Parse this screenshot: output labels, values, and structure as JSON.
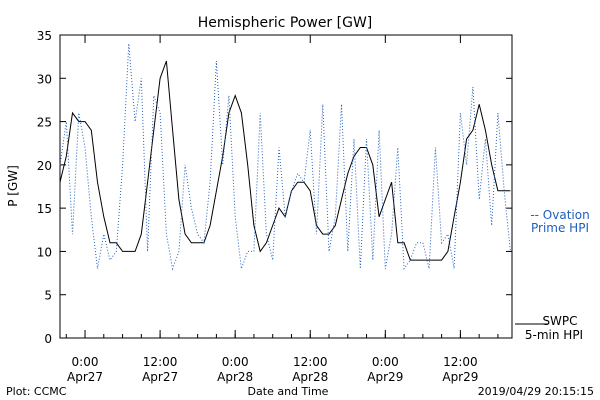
{
  "chart_data": {
    "type": "line",
    "title": "Hemispheric Power [GW]",
    "ylabel": "P [GW]",
    "xlabel": "Date and Time",
    "ylim": [
      0,
      35
    ],
    "y_ticks": [
      0,
      5,
      10,
      15,
      20,
      25,
      30,
      35
    ],
    "xlim": [
      "2019-04-26T20:00",
      "2019-04-29T20:15"
    ],
    "x_ticks": [
      {
        "at": "2019-04-27T00:00",
        "time": "0:00",
        "date": "Apr27"
      },
      {
        "at": "2019-04-27T12:00",
        "time": "12:00",
        "date": "Apr27"
      },
      {
        "at": "2019-04-28T00:00",
        "time": "0:00",
        "date": "Apr28"
      },
      {
        "at": "2019-04-28T12:00",
        "time": "12:00",
        "date": "Apr28"
      },
      {
        "at": "2019-04-29T00:00",
        "time": "0:00",
        "date": "Apr29"
      },
      {
        "at": "2019-04-29T12:00",
        "time": "12:00",
        "date": "Apr29"
      }
    ],
    "grid": false,
    "legend_position": "right",
    "series": [
      {
        "name_lines": [
          "SWPC",
          "5-min HPI"
        ],
        "color": "#000000",
        "style": "solid",
        "x": [
          "2019-04-26T20:00",
          "2019-04-26T21:00",
          "2019-04-26T22:00",
          "2019-04-26T23:00",
          "2019-04-27T00:00",
          "2019-04-27T01:00",
          "2019-04-27T02:00",
          "2019-04-27T03:00",
          "2019-04-27T04:00",
          "2019-04-27T05:00",
          "2019-04-27T06:00",
          "2019-04-27T07:00",
          "2019-04-27T08:00",
          "2019-04-27T09:00",
          "2019-04-27T10:00",
          "2019-04-27T11:00",
          "2019-04-27T12:00",
          "2019-04-27T13:00",
          "2019-04-27T14:00",
          "2019-04-27T15:00",
          "2019-04-27T16:00",
          "2019-04-27T17:00",
          "2019-04-27T18:00",
          "2019-04-27T19:00",
          "2019-04-27T20:00",
          "2019-04-27T21:00",
          "2019-04-27T22:00",
          "2019-04-27T23:00",
          "2019-04-28T00:00",
          "2019-04-28T01:00",
          "2019-04-28T02:00",
          "2019-04-28T03:00",
          "2019-04-28T04:00",
          "2019-04-28T05:00",
          "2019-04-28T06:00",
          "2019-04-28T07:00",
          "2019-04-28T08:00",
          "2019-04-28T09:00",
          "2019-04-28T10:00",
          "2019-04-28T11:00",
          "2019-04-28T12:00",
          "2019-04-28T13:00",
          "2019-04-28T14:00",
          "2019-04-28T15:00",
          "2019-04-28T16:00",
          "2019-04-28T17:00",
          "2019-04-28T18:00",
          "2019-04-28T19:00",
          "2019-04-28T20:00",
          "2019-04-28T21:00",
          "2019-04-28T22:00",
          "2019-04-28T23:00",
          "2019-04-29T00:00",
          "2019-04-29T01:00",
          "2019-04-29T02:00",
          "2019-04-29T03:00",
          "2019-04-29T04:00",
          "2019-04-29T05:00",
          "2019-04-29T06:00",
          "2019-04-29T07:00",
          "2019-04-29T08:00",
          "2019-04-29T09:00",
          "2019-04-29T10:00",
          "2019-04-29T11:00",
          "2019-04-29T12:00",
          "2019-04-29T13:00",
          "2019-04-29T14:00",
          "2019-04-29T15:00",
          "2019-04-29T16:00",
          "2019-04-29T17:00",
          "2019-04-29T18:00",
          "2019-04-29T19:00",
          "2019-04-29T20:00"
        ],
        "y": [
          18,
          21,
          26,
          25,
          25,
          24,
          18,
          14,
          11,
          11,
          10,
          10,
          10,
          12,
          18,
          24,
          30,
          32,
          24,
          16,
          12,
          11,
          11,
          11,
          13,
          17,
          21,
          26,
          28,
          26,
          20,
          13,
          10,
          11,
          13,
          15,
          14,
          17,
          18,
          18,
          17,
          13,
          12,
          12,
          13,
          16,
          19,
          21,
          22,
          22,
          20,
          14,
          16,
          18,
          11,
          11,
          9,
          9,
          9,
          9,
          9,
          9,
          10,
          14,
          18,
          23,
          24,
          27,
          24,
          20,
          17,
          17,
          17
        ]
      },
      {
        "name_lines": [
          "-- Ovation",
          "Prime HPI"
        ],
        "color": "#1f5fbf",
        "style": "dotted",
        "x": [
          "2019-04-26T20:00",
          "2019-04-26T21:00",
          "2019-04-26T22:00",
          "2019-04-26T23:00",
          "2019-04-27T00:00",
          "2019-04-27T01:00",
          "2019-04-27T02:00",
          "2019-04-27T03:00",
          "2019-04-27T04:00",
          "2019-04-27T05:00",
          "2019-04-27T06:00",
          "2019-04-27T07:00",
          "2019-04-27T08:00",
          "2019-04-27T09:00",
          "2019-04-27T10:00",
          "2019-04-27T11:00",
          "2019-04-27T12:00",
          "2019-04-27T13:00",
          "2019-04-27T14:00",
          "2019-04-27T15:00",
          "2019-04-27T16:00",
          "2019-04-27T17:00",
          "2019-04-27T18:00",
          "2019-04-27T19:00",
          "2019-04-27T20:00",
          "2019-04-27T21:00",
          "2019-04-27T22:00",
          "2019-04-27T23:00",
          "2019-04-28T00:00",
          "2019-04-28T01:00",
          "2019-04-28T02:00",
          "2019-04-28T03:00",
          "2019-04-28T04:00",
          "2019-04-28T05:00",
          "2019-04-28T06:00",
          "2019-04-28T07:00",
          "2019-04-28T08:00",
          "2019-04-28T09:00",
          "2019-04-28T10:00",
          "2019-04-28T11:00",
          "2019-04-28T12:00",
          "2019-04-28T13:00",
          "2019-04-28T14:00",
          "2019-04-28T15:00",
          "2019-04-28T16:00",
          "2019-04-28T17:00",
          "2019-04-28T18:00",
          "2019-04-28T19:00",
          "2019-04-28T20:00",
          "2019-04-28T21:00",
          "2019-04-28T22:00",
          "2019-04-28T23:00",
          "2019-04-29T00:00",
          "2019-04-29T01:00",
          "2019-04-29T02:00",
          "2019-04-29T03:00",
          "2019-04-29T04:00",
          "2019-04-29T05:00",
          "2019-04-29T06:00",
          "2019-04-29T07:00",
          "2019-04-29T08:00",
          "2019-04-29T09:00",
          "2019-04-29T10:00",
          "2019-04-29T11:00",
          "2019-04-29T12:00",
          "2019-04-29T13:00",
          "2019-04-29T14:00",
          "2019-04-29T15:00",
          "2019-04-29T16:00",
          "2019-04-29T17:00",
          "2019-04-29T18:00",
          "2019-04-29T19:00",
          "2019-04-29T20:00"
        ],
        "y": [
          20,
          25,
          12,
          26,
          22,
          14,
          8,
          12,
          9,
          10,
          20,
          34,
          25,
          30,
          10,
          28,
          26,
          12,
          8,
          10,
          20,
          15,
          12,
          11,
          18,
          32,
          20,
          28,
          14,
          8,
          10,
          10,
          26,
          12,
          9,
          22,
          14,
          17,
          19,
          18,
          24,
          12,
          27,
          10,
          14,
          27,
          10,
          23,
          8,
          23,
          9,
          24,
          8,
          12,
          22,
          8,
          9,
          11,
          11,
          8,
          22,
          11,
          12,
          8,
          26,
          20,
          29,
          16,
          23,
          13,
          26,
          17,
          10
        ]
      }
    ]
  },
  "footer": {
    "left": "Plot: CCMC",
    "center": "Date and Time",
    "right": "2019/04/29 20:15:15"
  }
}
